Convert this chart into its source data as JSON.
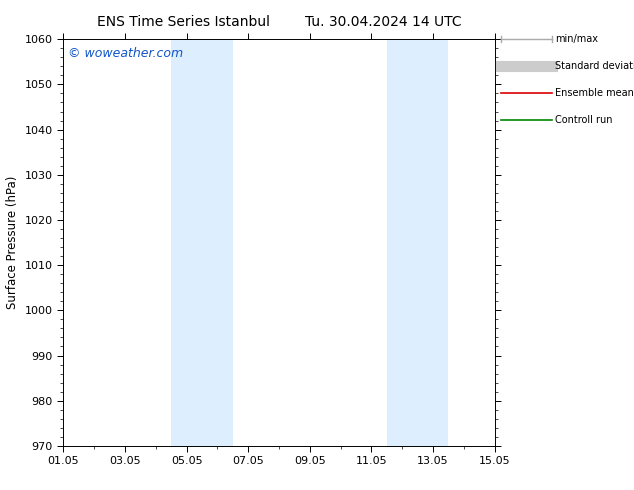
{
  "title": "ENS Time Series Istanbul",
  "subtitle": "Tu. 30.04.2024 14 UTC",
  "ylabel": "Surface Pressure (hPa)",
  "ylim": [
    970,
    1060
  ],
  "yticks": [
    970,
    980,
    990,
    1000,
    1010,
    1020,
    1030,
    1040,
    1050,
    1060
  ],
  "xtick_labels": [
    "01.05",
    "03.05",
    "05.05",
    "07.05",
    "09.05",
    "11.05",
    "13.05",
    "15.05"
  ],
  "xtick_positions": [
    0,
    2,
    4,
    6,
    8,
    10,
    12,
    14
  ],
  "xmin": 0,
  "xmax": 14,
  "shaded_bands": [
    {
      "xmin": 3.5,
      "xmax": 5.5
    },
    {
      "xmin": 10.5,
      "xmax": 12.5
    }
  ],
  "band_color": "#ddeeff",
  "background_color": "#ffffff",
  "watermark": "© woweather.com",
  "legend_items": [
    {
      "label": "min/max",
      "color": "#aaaaaa",
      "lw": 1.0,
      "style": "errorbar"
    },
    {
      "label": "Standard deviation",
      "color": "#cccccc",
      "lw": 8,
      "style": "line"
    },
    {
      "label": "Ensemble mean run",
      "color": "#dd0000",
      "lw": 1.2,
      "style": "line"
    },
    {
      "label": "Controll run",
      "color": "#008800",
      "lw": 1.2,
      "style": "line"
    }
  ],
  "title_fontsize": 10,
  "tick_fontsize": 8,
  "label_fontsize": 8.5,
  "watermark_color": "#1155cc",
  "watermark_fontsize": 9
}
